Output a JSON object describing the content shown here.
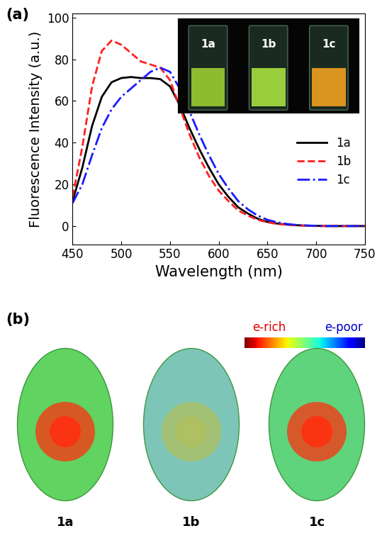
{
  "chart_data": {
    "type": "line",
    "title": "(a)",
    "x_label": "Wavelength (nm)",
    "y_label": "Fluorescence Intensity (a.u.)",
    "x": [
      450,
      460,
      470,
      480,
      490,
      500,
      510,
      520,
      530,
      540,
      550,
      560,
      570,
      580,
      590,
      600,
      610,
      620,
      630,
      640,
      650,
      660,
      670,
      680,
      690,
      700,
      710,
      720,
      730,
      740,
      750
    ],
    "series": [
      {
        "name": "1a",
        "color": "#000000",
        "line_style": "solid",
        "values": [
          12,
          28,
          48,
          62,
          69,
          71,
          71.5,
          71,
          71,
          70.5,
          67,
          58,
          47,
          37,
          28,
          20,
          14,
          9,
          6,
          3.5,
          2,
          1.2,
          0.7,
          0.4,
          0.2,
          0.1,
          0,
          0,
          0,
          0,
          0
        ]
      },
      {
        "name": "1b",
        "color": "#ff2020",
        "line_style": "dashed",
        "values": [
          14,
          38,
          67,
          84,
          89,
          87,
          83,
          79,
          77.5,
          76,
          70,
          57,
          44,
          33,
          24,
          17,
          12,
          7.5,
          5,
          3,
          1.8,
          1,
          0.6,
          0.3,
          0.1,
          0,
          0,
          0,
          0,
          0,
          0
        ]
      },
      {
        "name": "1c",
        "color": "#1a1aff",
        "line_style": "dashdot",
        "values": [
          11,
          20,
          34,
          47,
          56,
          62,
          66,
          70,
          74,
          76,
          74,
          66,
          55,
          44,
          34,
          25,
          18,
          12,
          8,
          5,
          3,
          1.8,
          1,
          0.5,
          0.3,
          0.1,
          0,
          0,
          0,
          0,
          0
        ]
      }
    ],
    "xlim": [
      450,
      750
    ],
    "xticks": [
      450,
      500,
      550,
      600,
      650,
      700,
      750
    ],
    "ylim": [
      -9,
      102
    ],
    "yticks": [
      0,
      20,
      40,
      60,
      80,
      100
    ],
    "legend": "center right",
    "annotations": [
      "1a",
      "1b",
      "1c"
    ]
  },
  "panel_b": {
    "label": "(b)",
    "scale_left": "e-rich",
    "scale_right": "e-poor",
    "molecules": [
      "1a",
      "1b",
      "1c"
    ]
  }
}
